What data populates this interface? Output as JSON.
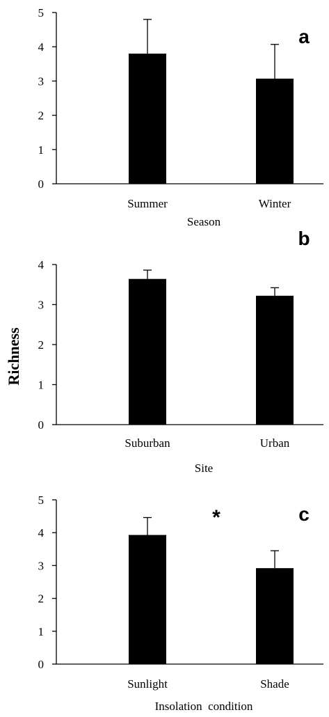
{
  "chart_data": [
    {
      "type": "bar",
      "panel_label": "a",
      "categories": [
        "Summer",
        "Winter"
      ],
      "values": [
        3.8,
        3.07
      ],
      "errors": [
        1.0,
        1.0
      ],
      "xlabel": "Season",
      "ylim": [
        0,
        5
      ],
      "yticks": [
        "0",
        "1",
        "2",
        "3",
        "4",
        "5"
      ],
      "grid": false,
      "bar_color": "#000000"
    },
    {
      "type": "bar",
      "panel_label": "b",
      "categories": [
        "Suburban",
        "Urban"
      ],
      "values": [
        3.64,
        3.22
      ],
      "errors": [
        0.22,
        0.2
      ],
      "xlabel": "Site",
      "ylim": [
        0,
        4
      ],
      "yticks": [
        "0",
        "1",
        "2",
        "3",
        "4"
      ],
      "grid": false,
      "bar_color": "#000000"
    },
    {
      "type": "bar",
      "panel_label": "c",
      "categories": [
        "Sunlight",
        "Shade"
      ],
      "values": [
        3.93,
        2.92
      ],
      "errors": [
        0.53,
        0.53
      ],
      "xlabel": "Insolation  condition",
      "annotation": "*",
      "ylim": [
        0,
        5
      ],
      "yticks": [
        "0",
        "1",
        "2",
        "3",
        "4",
        "5"
      ],
      "grid": false,
      "bar_color": "#000000"
    }
  ],
  "shared_ylabel": "Richness"
}
